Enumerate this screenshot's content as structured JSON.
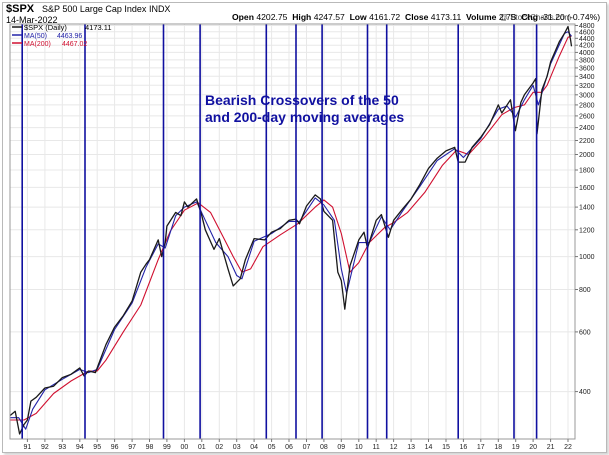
{
  "header": {
    "symbol": "$SPX",
    "name": "S&P 500 Large Cap Index",
    "exchange": "INDX",
    "date": "14-Mar-2022",
    "credit": "@ StockCharts.com",
    "ohlc": {
      "open_label": "Open",
      "open": "4202.75",
      "high_label": "High",
      "high": "4247.57",
      "low_label": "Low",
      "low": "4161.72",
      "close_label": "Close",
      "close": "4173.11",
      "volume_label": "Volume",
      "volume": "2.7B",
      "chg_label": "Chg",
      "chg": "-31.20 (-0.74%)"
    }
  },
  "colors": {
    "price": "#1a1a1a",
    "ma50": "#2323a8",
    "ma200": "#d01030",
    "crossover_line": "#1010a0",
    "annotation_text": "#1010a0",
    "grid": "#e8e8e8"
  },
  "chart_data": {
    "type": "line",
    "y_scale": "log",
    "ylim": [
      290,
      4850
    ],
    "xlim": [
      1990.0,
      2022.4
    ],
    "grid": true,
    "legend_placement": "top-left",
    "legend": [
      {
        "symbol": "$SPX (Daily)",
        "value": "4173.11"
      },
      {
        "symbol": "MA(50)",
        "value": "4463.96"
      },
      {
        "symbol": "MA(200)",
        "value": "4467.02"
      }
    ],
    "annotation": [
      "Bearish Crossovers of the 50",
      "and 200-day moving averages"
    ],
    "y_ticks": [
      400,
      600,
      800,
      1000,
      1200,
      1400,
      1600,
      1800,
      2000,
      2200,
      2400,
      2600,
      2800,
      3000,
      3200,
      3400,
      3600,
      3800,
      4000,
      4200,
      4400,
      4600,
      4800
    ],
    "y_tick_labels": [
      "400",
      "600",
      "800",
      "1000",
      "1200",
      "1400",
      "1600",
      "1800",
      "2000",
      "2200",
      "2400",
      "2600",
      "2800",
      "3000",
      "3200",
      "3400",
      "3600",
      "3800",
      "4000",
      "4200",
      "4400",
      "4600",
      "4800"
    ],
    "x_ticks": [
      1991,
      1992,
      1993,
      1994,
      1995,
      1996,
      1997,
      1998,
      1999,
      2000,
      2001,
      2002,
      2003,
      2004,
      2005,
      2006,
      2007,
      2008,
      2009,
      2010,
      2011,
      2012,
      2013,
      2014,
      2015,
      2016,
      2017,
      2018,
      2019,
      2020,
      2021,
      2022
    ],
    "x_tick_labels": [
      "91",
      "92",
      "93",
      "94",
      "95",
      "96",
      "97",
      "98",
      "99",
      "00",
      "01",
      "02",
      "03",
      "04",
      "05",
      "06",
      "07",
      "08",
      "09",
      "10",
      "11",
      "12",
      "13",
      "14",
      "15",
      "16",
      "17",
      "18",
      "19",
      "20",
      "21",
      "22"
    ],
    "crossovers": [
      1990.7,
      1994.3,
      1998.8,
      2000.9,
      2004.7,
      2006.4,
      2007.9,
      2010.5,
      2011.6,
      2015.7,
      2018.9,
      2020.2
    ],
    "series": [
      {
        "key": "price",
        "x": [
          1990.0,
          1990.3,
          1990.55,
          1990.8,
          1991.0,
          1991.2,
          1991.5,
          1992.0,
          1992.5,
          1993.0,
          1993.5,
          1994.0,
          1994.25,
          1994.5,
          1994.9,
          1995.0,
          1995.5,
          1996.0,
          1996.5,
          1997.0,
          1997.5,
          1997.8,
          1998.0,
          1998.5,
          1998.7,
          1998.9,
          1999.0,
          1999.5,
          1999.8,
          2000.0,
          2000.2,
          2000.7,
          2001.0,
          2001.2,
          2001.7,
          2002.0,
          2002.5,
          2002.8,
          2003.2,
          2003.5,
          2004.0,
          2004.6,
          2005.0,
          2005.5,
          2006.0,
          2006.4,
          2006.6,
          2007.0,
          2007.5,
          2007.8,
          2008.0,
          2008.5,
          2008.8,
          2009.0,
          2009.2,
          2009.5,
          2010.0,
          2010.3,
          2010.5,
          2011.0,
          2011.3,
          2011.7,
          2012.0,
          2012.5,
          2013.0,
          2013.5,
          2014.0,
          2014.5,
          2015.0,
          2015.5,
          2015.7,
          2016.1,
          2016.5,
          2017.0,
          2017.5,
          2018.0,
          2018.2,
          2018.7,
          2018.98,
          2019.3,
          2019.5,
          2020.0,
          2020.15,
          2020.22,
          2020.5,
          2020.8,
          2021.0,
          2021.5,
          2021.8,
          2022.0,
          2022.15,
          2022.2
        ],
        "y": [
          340,
          350,
          300,
          320,
          330,
          375,
          385,
          410,
          415,
          440,
          450,
          470,
          445,
          460,
          455,
          470,
          550,
          620,
          670,
          740,
          900,
          950,
          980,
          1120,
          1000,
          1100,
          1230,
          1350,
          1320,
          1450,
          1400,
          1480,
          1320,
          1200,
          1050,
          1130,
          920,
          820,
          860,
          980,
          1130,
          1120,
          1180,
          1210,
          1280,
          1290,
          1250,
          1410,
          1520,
          1480,
          1360,
          1280,
          900,
          850,
          700,
          940,
          1120,
          1180,
          1060,
          1280,
          1330,
          1140,
          1280,
          1380,
          1480,
          1630,
          1820,
          1950,
          2050,
          2100,
          1900,
          1900,
          2100,
          2250,
          2450,
          2800,
          2650,
          2900,
          2350,
          2850,
          3000,
          3250,
          3350,
          2300,
          3100,
          3400,
          3750,
          4300,
          4550,
          4770,
          4350,
          4170
        ]
      },
      {
        "key": "ma50",
        "x": [
          1990.0,
          1990.5,
          1990.9,
          1991.3,
          1992.0,
          1993.0,
          1994.0,
          1994.5,
          1995.0,
          1996.0,
          1997.0,
          1997.8,
          1998.5,
          1998.9,
          1999.5,
          2000.0,
          2000.7,
          2001.2,
          2001.8,
          2002.5,
          2003.0,
          2003.3,
          2004.0,
          2005.0,
          2006.0,
          2006.6,
          2007.5,
          2008.0,
          2008.6,
          2009.0,
          2009.3,
          2010.0,
          2010.6,
          2011.3,
          2011.8,
          2012.5,
          2013.5,
          2014.5,
          2015.5,
          2016.0,
          2017.0,
          2018.0,
          2018.5,
          2019.0,
          2019.5,
          2020.0,
          2020.3,
          2020.6,
          2021.0,
          2021.8,
          2022.0,
          2022.2
        ],
        "y": [
          335,
          335,
          310,
          355,
          405,
          435,
          465,
          455,
          465,
          610,
          730,
          930,
          1090,
          1060,
          1320,
          1400,
          1450,
          1280,
          1100,
          1000,
          880,
          860,
          1110,
          1170,
          1270,
          1270,
          1490,
          1420,
          1280,
          920,
          780,
          1100,
          1100,
          1310,
          1200,
          1360,
          1610,
          1920,
          2080,
          1960,
          2230,
          2720,
          2780,
          2580,
          2900,
          3200,
          2800,
          3150,
          3700,
          4550,
          4600,
          4464
        ]
      },
      {
        "key": "ma200",
        "x": [
          1990.0,
          1990.8,
          1991.5,
          1992.5,
          1993.5,
          1994.5,
          1995.0,
          1995.5,
          1996.5,
          1997.5,
          1998.5,
          1999.2,
          2000.0,
          2000.8,
          2001.5,
          2002.2,
          2002.8,
          2003.3,
          2003.8,
          2004.5,
          2005.5,
          2006.5,
          2007.5,
          2008.0,
          2008.5,
          2009.0,
          2009.5,
          2010.0,
          2010.6,
          2011.5,
          2012.0,
          2012.8,
          2013.8,
          2014.8,
          2015.6,
          2016.3,
          2017.2,
          2018.2,
          2018.9,
          2019.5,
          2020.0,
          2020.5,
          2020.8,
          2021.5,
          2022.0,
          2022.2
        ],
        "y": [
          330,
          330,
          345,
          395,
          430,
          460,
          460,
          495,
          600,
          720,
          980,
          1190,
          1370,
          1440,
          1350,
          1150,
          1000,
          900,
          920,
          1070,
          1160,
          1250,
          1400,
          1470,
          1400,
          1170,
          900,
          960,
          1100,
          1220,
          1260,
          1350,
          1550,
          1860,
          2060,
          2000,
          2250,
          2620,
          2750,
          2800,
          3050,
          3050,
          3200,
          3900,
          4430,
          4467
        ]
      }
    ]
  }
}
